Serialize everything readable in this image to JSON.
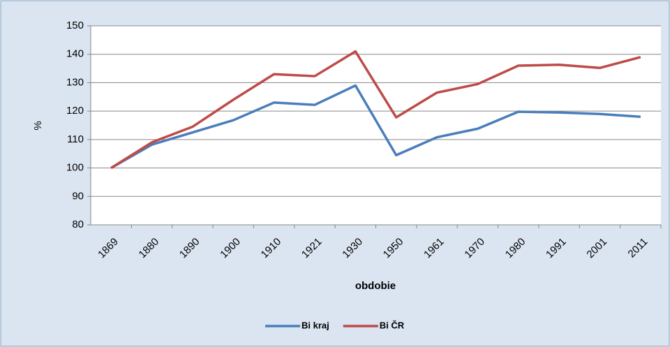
{
  "chart_data": {
    "type": "line",
    "categories": [
      "1869",
      "1880",
      "1890",
      "1900",
      "1910",
      "1921",
      "1930",
      "1950",
      "1961",
      "1970",
      "1980",
      "1991",
      "2001",
      "2011"
    ],
    "series": [
      {
        "name": "Bi kraj",
        "color": "#4a7ebb",
        "values": [
          100,
          108.2,
          112.5,
          116.8,
          123,
          122.2,
          129,
          104.5,
          110.8,
          113.8,
          119.8,
          119.5,
          119,
          118
        ]
      },
      {
        "name": "Bi ČR",
        "color": "#be4b48",
        "values": [
          100,
          109,
          114.5,
          124,
          133,
          132.3,
          141,
          117.8,
          126.5,
          129.5,
          136,
          136.3,
          135.2,
          139
        ]
      }
    ],
    "ylim": [
      80,
      150
    ],
    "yticks": [
      80,
      90,
      100,
      110,
      120,
      130,
      140,
      150
    ],
    "y_label": "%",
    "x_label": "obdobie",
    "grid": true,
    "legend": "bottom"
  }
}
